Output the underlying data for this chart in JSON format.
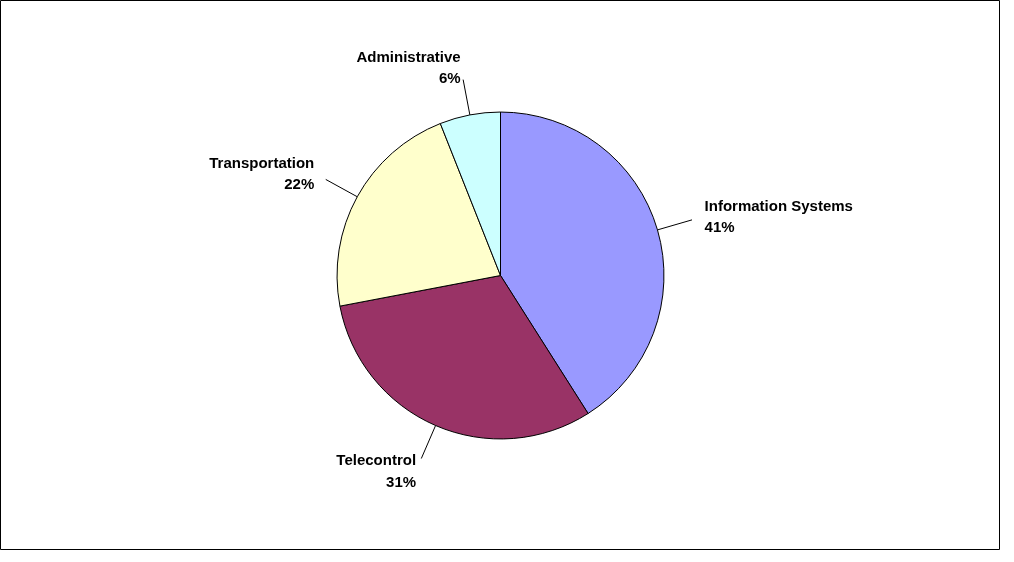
{
  "chart_data": {
    "type": "pie",
    "categories": [
      "Information Systems",
      "Telecontrol",
      "Transportation",
      "Administrative"
    ],
    "values": [
      41,
      31,
      22,
      6
    ],
    "value_labels": [
      "41%",
      "31%",
      "22%",
      "6%"
    ],
    "colors": [
      "#9999ff",
      "#993366",
      "#ffffcc",
      "#ccffff"
    ]
  }
}
